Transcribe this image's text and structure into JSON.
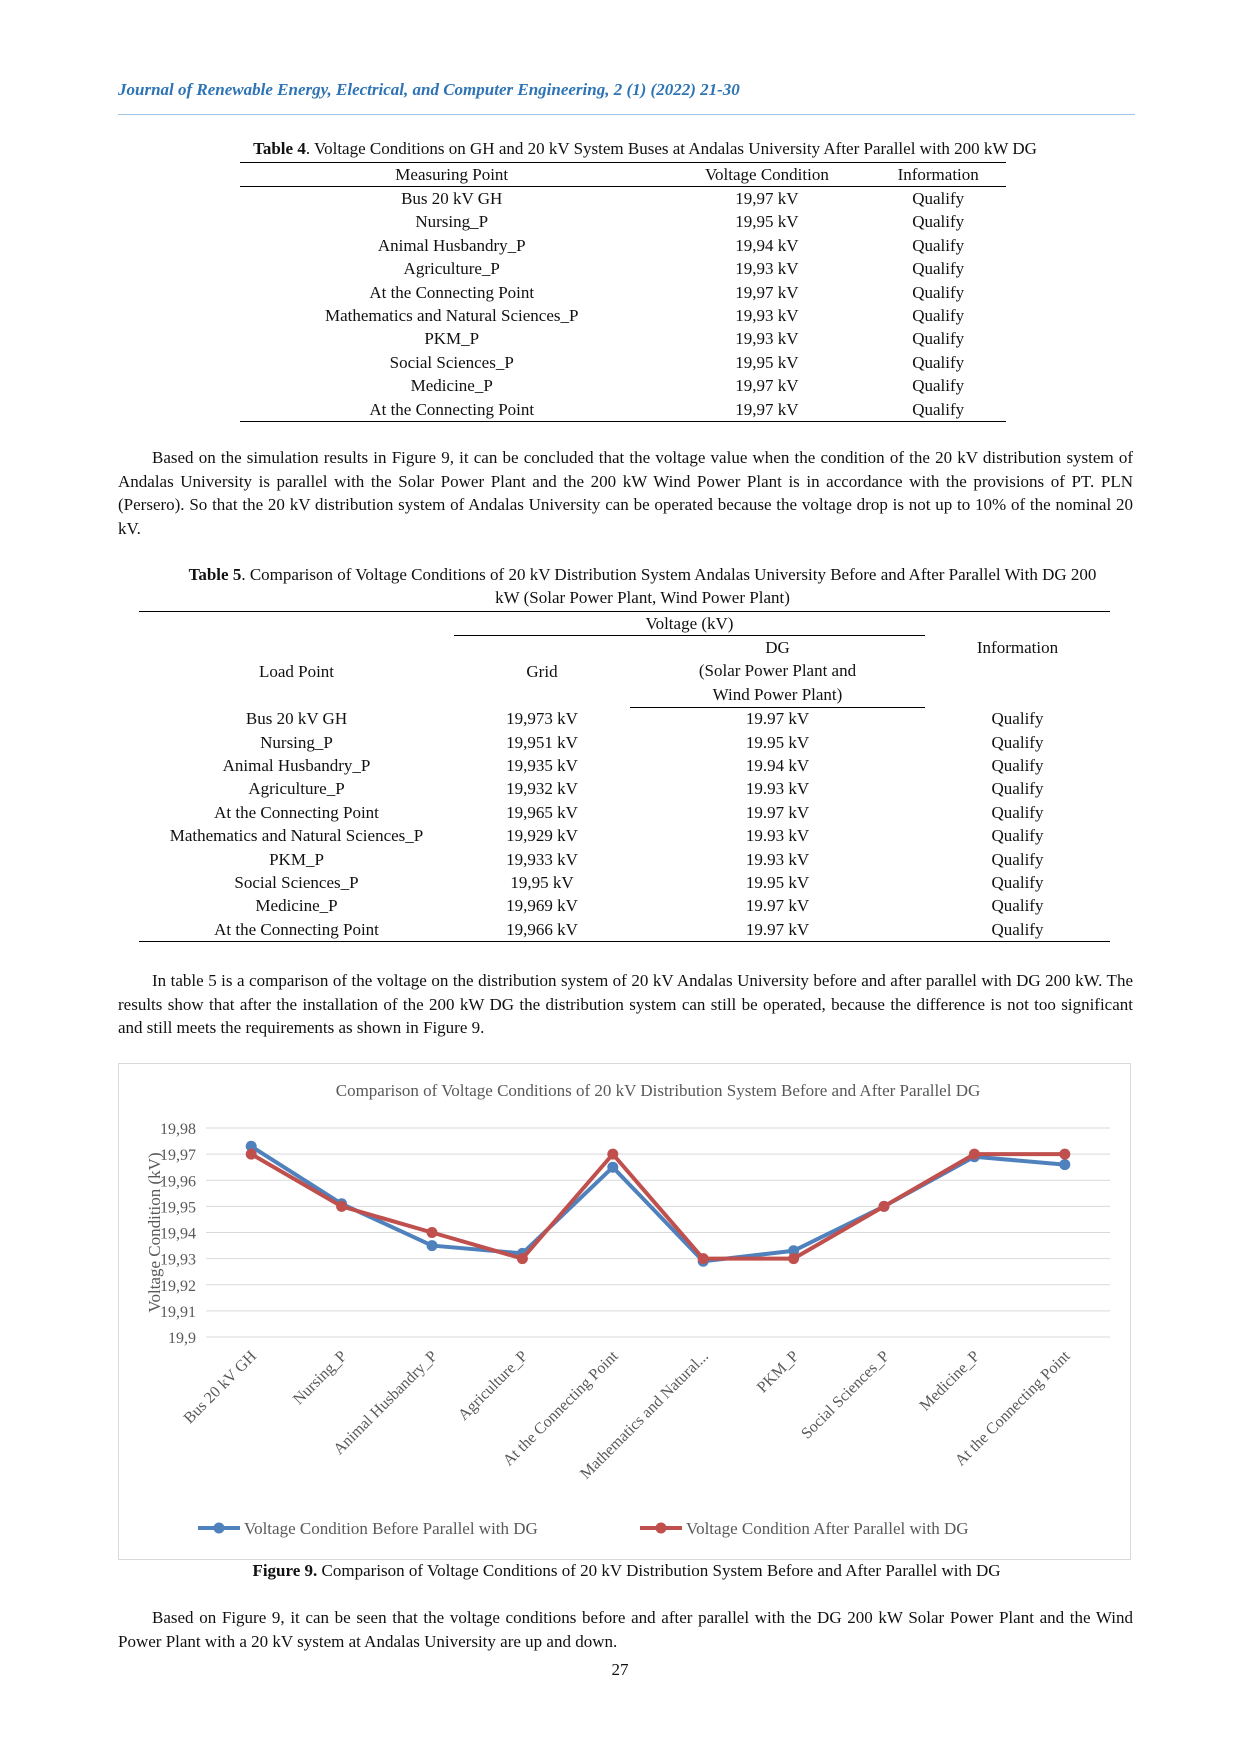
{
  "header": {
    "title": "Journal of Renewable Energy, Electrical, and Computer Engineering, 2 (1) (2022) 21-30"
  },
  "table4": {
    "label": "Table 4",
    "caption": ". Voltage Conditions on GH and 20 kV System Buses at Andalas University After Parallel with 200 kW DG",
    "columns": [
      "Measuring Point",
      "Voltage Condition",
      "Information"
    ],
    "rows": [
      [
        "Bus 20 kV GH",
        "19,97 kV",
        "Qualify"
      ],
      [
        "Nursing_P",
        "19,95 kV",
        "Qualify"
      ],
      [
        "Animal Husbandry_P",
        "19,94 kV",
        "Qualify"
      ],
      [
        "Agriculture_P",
        "19,93 kV",
        "Qualify"
      ],
      [
        "At the Connecting Point",
        "19,97 kV",
        "Qualify"
      ],
      [
        "Mathematics and Natural Sciences_P",
        "19,93 kV",
        "Qualify"
      ],
      [
        "PKM_P",
        "19,93 kV",
        "Qualify"
      ],
      [
        "Social Sciences_P",
        "19,95 kV",
        "Qualify"
      ],
      [
        "Medicine_P",
        "19,97 kV",
        "Qualify"
      ],
      [
        "At the Connecting Point",
        "19,97 kV",
        "Qualify"
      ]
    ]
  },
  "paragraph1": "Based on the simulation results in Figure 9, it can be concluded that the voltage value when the condition of the 20 kV distribution system of Andalas University is parallel with the Solar Power Plant and the 200 kW Wind Power Plant is in accordance with the provisions of PT. PLN (Persero). So that the 20 kV distribution system of Andalas University can be operated because the voltage drop is not up to 10% of the nominal 20 kV.",
  "table5": {
    "label": "Table 5",
    "caption": ". Comparison of Voltage Conditions of 20 kV Distribution System Andalas University Before and After Parallel With DG 200 kW (Solar Power Plant, Wind Power Plant)",
    "load_point": "Load Point",
    "voltage": "Voltage (kV)",
    "grid": "Grid",
    "dg": [
      "DG",
      "(Solar Power Plant and",
      "Wind Power Plant)"
    ],
    "information": "Information",
    "rows": [
      [
        "Bus 20 kV GH",
        "19,973 kV",
        "19.97 kV",
        "Qualify"
      ],
      [
        "Nursing_P",
        "19,951 kV",
        "19.95 kV",
        "Qualify"
      ],
      [
        "Animal Husbandry_P",
        "19,935 kV",
        "19.94 kV",
        "Qualify"
      ],
      [
        "Agriculture_P",
        "19,932 kV",
        "19.93 kV",
        "Qualify"
      ],
      [
        "At the Connecting Point",
        "19,965 kV",
        "19.97 kV",
        "Qualify"
      ],
      [
        "Mathematics and Natural Sciences_P",
        "19,929 kV",
        "19.93 kV",
        "Qualify"
      ],
      [
        "PKM_P",
        "19,933 kV",
        "19.93 kV",
        "Qualify"
      ],
      [
        "Social Sciences_P",
        "19,95 kV",
        "19.95 kV",
        "Qualify"
      ],
      [
        "Medicine_P",
        "19,969 kV",
        "19.97 kV",
        "Qualify"
      ],
      [
        "At the Connecting Point",
        "19,966 kV",
        "19.97 kV",
        "Qualify"
      ]
    ]
  },
  "paragraph2": "In table 5 is a comparison of the voltage on the distribution system of 20 kV Andalas University before and after parallel with DG 200 kW. The results show that after the installation of the 200 kW DG the distribution system can still be operated, because the difference is not too significant and still meets the requirements as shown in Figure 9.",
  "chart_data": {
    "type": "line",
    "title": "Comparison of Voltage Conditions of 20 kV Distribution System Before and After Parallel DG",
    "y_label": "Voltage Condition (kV)",
    "categories": [
      "Bus 20 kV GH",
      "Nursing_P",
      "Animal Husbandry_P",
      "Agriculture_P",
      "At the Connecting Point",
      "Mathematics and Natural...",
      "PKM_P",
      "Social Sciences_P",
      "Medicine_P",
      "At the Connecting Point"
    ],
    "series": [
      {
        "name": "Voltage Condition Before Parallel with DG",
        "color": "#4f81bd",
        "values": [
          19.973,
          19.951,
          19.935,
          19.932,
          19.965,
          19.929,
          19.933,
          19.95,
          19.969,
          19.966
        ]
      },
      {
        "name": "Voltage Condition After Parallel with DG",
        "color": "#c0504d",
        "values": [
          19.97,
          19.95,
          19.94,
          19.93,
          19.97,
          19.93,
          19.93,
          19.95,
          19.97,
          19.97
        ]
      }
    ],
    "ylim": [
      19.9,
      19.98
    ],
    "yticks": [
      {
        "value": 19.9,
        "label": "19,9"
      },
      {
        "value": 19.91,
        "label": "19,91"
      },
      {
        "value": 19.92,
        "label": "19,92"
      },
      {
        "value": 19.93,
        "label": "19,93"
      },
      {
        "value": 19.94,
        "label": "19,94"
      },
      {
        "value": 19.95,
        "label": "19,95"
      },
      {
        "value": 19.96,
        "label": "19,96"
      },
      {
        "value": 19.97,
        "label": "19,97"
      },
      {
        "value": 19.98,
        "label": "19,98"
      }
    ],
    "grid": true,
    "legend": "bottom"
  },
  "figure_caption": {
    "label": "Figure 9.",
    "text": " Comparison of Voltage Conditions of 20 kV Distribution System Before and After Parallel with DG"
  },
  "paragraph3": "Based on Figure 9, it can be seen that the voltage conditions before and after parallel with the DG 200 kW Solar Power Plant and the Wind Power Plant with a 20 kV system at Andalas University are up and down.",
  "page_number": "27"
}
